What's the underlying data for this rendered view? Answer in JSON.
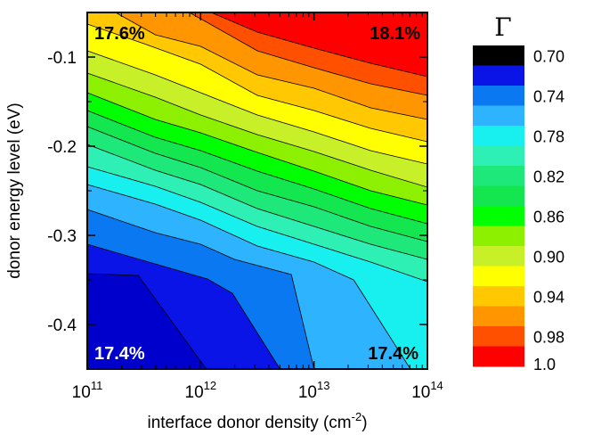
{
  "chart_data": {
    "type": "contour",
    "xlabel_main": "interface donor density (cm",
    "xlabel_sup": "-2",
    "xlabel_end": ")",
    "ylabel": "donor energy level (eV)",
    "x_scale": "log",
    "xlim": [
      100000000000.0,
      100000000000000.0
    ],
    "ylim": [
      -0.45,
      -0.05
    ],
    "x_ticks": [
      {
        "base": "10",
        "exp": "11",
        "value": 100000000000.0
      },
      {
        "base": "10",
        "exp": "12",
        "value": 1000000000000.0
      },
      {
        "base": "10",
        "exp": "13",
        "value": 10000000000000.0
      },
      {
        "base": "10",
        "exp": "14",
        "value": 100000000000000.0
      }
    ],
    "y_ticks": [
      {
        "label": "-0.1",
        "value": -0.1
      },
      {
        "label": "-0.2",
        "value": -0.2
      },
      {
        "label": "-0.3",
        "value": -0.3
      },
      {
        "label": "-0.4",
        "value": -0.4
      }
    ],
    "corner_annotations": [
      {
        "text": "17.6%",
        "position": "top-left",
        "color": "#000000"
      },
      {
        "text": "18.1%",
        "position": "top-right",
        "color": "#000000"
      },
      {
        "text": "17.4%",
        "position": "bottom-left",
        "color": "#ffffff"
      },
      {
        "text": "17.4%",
        "position": "bottom-right",
        "color": "#000000"
      }
    ],
    "colorbar": {
      "title": "Γ",
      "levels": [
        {
          "color": "#000000",
          "label": "0.70"
        },
        {
          "color": "#0a14e6",
          "label": ""
        },
        {
          "color": "#0a78f0",
          "label": "0.74"
        },
        {
          "color": "#2eb4ff",
          "label": ""
        },
        {
          "color": "#18f0f0",
          "label": "0.78"
        },
        {
          "color": "#2ef0b4",
          "label": ""
        },
        {
          "color": "#1ee87a",
          "label": "0.82"
        },
        {
          "color": "#14e650",
          "label": ""
        },
        {
          "color": "#00ff00",
          "label": "0.86"
        },
        {
          "color": "#8cf000",
          "label": ""
        },
        {
          "color": "#c8f028",
          "label": "0.90"
        },
        {
          "color": "#ffff00",
          "label": ""
        },
        {
          "color": "#ffc800",
          "label": "0.94"
        },
        {
          "color": "#ff9600",
          "label": ""
        },
        {
          "color": "#ff5000",
          "label": "0.98"
        },
        {
          "color": "#ff0000",
          "label": "1.0"
        }
      ]
    },
    "bands": [
      {
        "color": "#0a14e6",
        "boundary": [
          [
            11,
            -0.343
          ],
          [
            11.45,
            -0.345
          ],
          [
            12.05,
            -0.45
          ]
        ]
      },
      {
        "color": "#0a78f0",
        "boundary": [
          [
            11,
            -0.31
          ],
          [
            12.06,
            -0.349
          ],
          [
            12.28,
            -0.365
          ],
          [
            12.7,
            -0.45
          ]
        ]
      },
      {
        "color": "#2eb4ff",
        "boundary": [
          [
            11,
            -0.271
          ],
          [
            11.6,
            -0.297
          ],
          [
            12,
            -0.31
          ],
          [
            12.3,
            -0.327
          ],
          [
            12.8,
            -0.344
          ],
          [
            13.0,
            -0.45
          ]
        ]
      },
      {
        "color": "#18f0f0",
        "boundary": [
          [
            11,
            -0.243
          ],
          [
            11.6,
            -0.265
          ],
          [
            12,
            -0.283
          ],
          [
            12.5,
            -0.312
          ],
          [
            13,
            -0.33
          ],
          [
            13.35,
            -0.35
          ],
          [
            13.85,
            -0.45
          ]
        ]
      },
      {
        "color": "#2ef0b4",
        "boundary": [
          [
            11,
            -0.223
          ],
          [
            11.6,
            -0.245
          ],
          [
            12,
            -0.263
          ],
          [
            12.5,
            -0.29
          ],
          [
            13,
            -0.31
          ],
          [
            13.5,
            -0.33
          ],
          [
            14,
            -0.352
          ]
        ]
      },
      {
        "color": "#1ee87a",
        "boundary": [
          [
            11,
            -0.198
          ],
          [
            11.6,
            -0.227
          ],
          [
            12,
            -0.243
          ],
          [
            12.5,
            -0.27
          ],
          [
            13,
            -0.29
          ],
          [
            13.5,
            -0.31
          ],
          [
            14,
            -0.327
          ]
        ]
      },
      {
        "color": "#14e650",
        "boundary": [
          [
            11,
            -0.178
          ],
          [
            11.6,
            -0.208
          ],
          [
            12,
            -0.224
          ],
          [
            12.5,
            -0.25
          ],
          [
            13,
            -0.268
          ],
          [
            13.5,
            -0.29
          ],
          [
            14,
            -0.307
          ]
        ]
      },
      {
        "color": "#00ff00",
        "boundary": [
          [
            11,
            -0.16
          ],
          [
            11.6,
            -0.19
          ],
          [
            12,
            -0.205
          ],
          [
            12.5,
            -0.228
          ],
          [
            13,
            -0.248
          ],
          [
            13.5,
            -0.27
          ],
          [
            14,
            -0.287
          ]
        ]
      },
      {
        "color": "#8cf000",
        "boundary": [
          [
            11,
            -0.14
          ],
          [
            11.6,
            -0.17
          ],
          [
            12,
            -0.185
          ],
          [
            12.5,
            -0.207
          ],
          [
            13,
            -0.228
          ],
          [
            13.5,
            -0.25
          ],
          [
            14,
            -0.266
          ]
        ]
      },
      {
        "color": "#c8f028",
        "boundary": [
          [
            11,
            -0.118
          ],
          [
            11.6,
            -0.145
          ],
          [
            12,
            -0.165
          ],
          [
            12.5,
            -0.187
          ],
          [
            13,
            -0.206
          ],
          [
            13.5,
            -0.227
          ],
          [
            14,
            -0.246
          ]
        ]
      },
      {
        "color": "#ffff00",
        "boundary": [
          [
            11,
            -0.093
          ],
          [
            11.6,
            -0.12
          ],
          [
            12,
            -0.14
          ],
          [
            12.5,
            -0.165
          ],
          [
            13,
            -0.184
          ],
          [
            13.5,
            -0.205
          ],
          [
            14,
            -0.22
          ]
        ]
      },
      {
        "color": "#ffc800",
        "boundary": [
          [
            11,
            -0.063
          ],
          [
            11.5,
            -0.085
          ],
          [
            12,
            -0.108
          ],
          [
            12.5,
            -0.143
          ],
          [
            13,
            -0.16
          ],
          [
            13.5,
            -0.18
          ],
          [
            14,
            -0.195
          ]
        ]
      },
      {
        "color": "#ff9600",
        "boundary": [
          [
            11.25,
            -0.05
          ],
          [
            11.6,
            -0.075
          ],
          [
            12,
            -0.088
          ],
          [
            12.5,
            -0.12
          ],
          [
            13,
            -0.135
          ],
          [
            13.5,
            -0.157
          ],
          [
            14,
            -0.17
          ]
        ]
      },
      {
        "color": "#ff5000",
        "boundary": [
          [
            11.9,
            -0.05
          ],
          [
            12,
            -0.057
          ],
          [
            12.5,
            -0.093
          ],
          [
            13,
            -0.112
          ],
          [
            13.5,
            -0.13
          ],
          [
            14,
            -0.143
          ]
        ]
      },
      {
        "color": "#ff0000",
        "boundary": [
          [
            12.0,
            -0.05
          ],
          [
            12,
            -0.05
          ]
        ]
      }
    ]
  }
}
